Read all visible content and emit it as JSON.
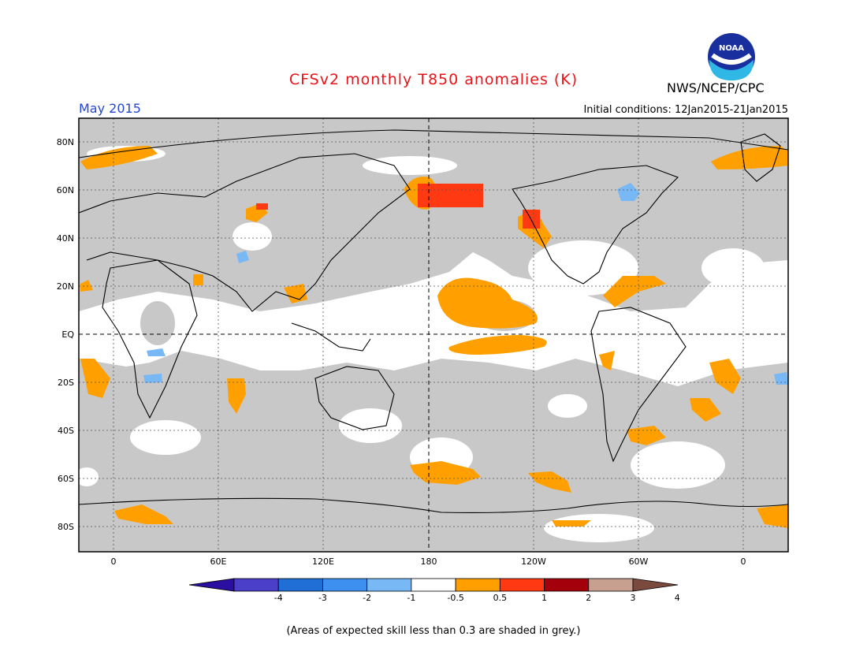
{
  "title": "CFSv2 monthly T850 anomalies (K)",
  "month_label": "May 2015",
  "initial_conditions": "Initial conditions: 12Jan2015-21Jan2015",
  "agency": "NWS/NCEP/CPC",
  "logo_text": "NOAA",
  "footnote": "(Areas of expected skill less than 0.3 are shaded in grey.)",
  "lat_ticks": [
    "80N",
    "60N",
    "40N",
    "20N",
    "EQ",
    "20S",
    "40S",
    "60S",
    "80S"
  ],
  "lon_ticks": [
    "0",
    "60E",
    "120E",
    "180",
    "120W",
    "60W",
    "0"
  ],
  "colorbar": {
    "labels": [
      "-4",
      "-3",
      "-2",
      "-1",
      "-0.5",
      "0.5",
      "1",
      "2",
      "3",
      "4"
    ],
    "colors": [
      "#2a0fa0",
      "#4b3ec9",
      "#1f6fd6",
      "#3d8ff0",
      "#78b8f5",
      "#ffffff",
      "#ffa000",
      "#ff3a12",
      "#a3000b",
      "#c8a090",
      "#7a4a3e"
    ]
  },
  "colors": {
    "grey_shade": "#c8c8c8",
    "warm_1": "#ffa000",
    "warm_2": "#ff3a12",
    "cool_1": "#78b8f5"
  }
}
